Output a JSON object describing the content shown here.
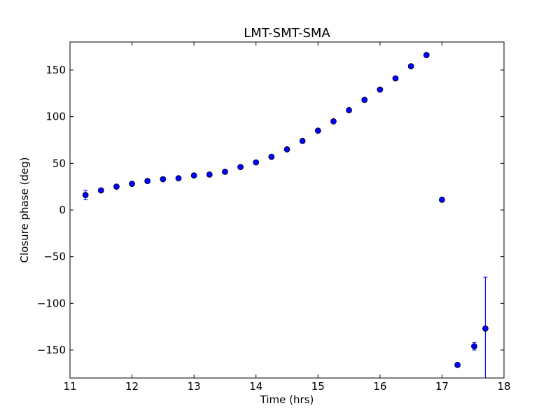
{
  "chart_data": {
    "type": "scatter",
    "title": "LMT-SMT-SMA",
    "xlabel": "Time (hrs)",
    "ylabel": "Closure phase (deg)",
    "xlim": [
      11,
      18
    ],
    "ylim": [
      -180,
      180
    ],
    "xticks": [
      11,
      12,
      13,
      14,
      15,
      16,
      17,
      18
    ],
    "yticks": [
      -150,
      -100,
      -50,
      0,
      50,
      100,
      150
    ],
    "xtick_labels": [
      "11",
      "12",
      "13",
      "14",
      "15",
      "16",
      "17",
      "18"
    ],
    "ytick_labels": [
      "−150",
      "−100",
      "−50",
      "0",
      "50",
      "100",
      "150"
    ],
    "grid": false,
    "marker_color": "#0000ff",
    "errorbar_color": "#0000ff",
    "points": [
      {
        "x": 11.25,
        "y": 16,
        "err": 5
      },
      {
        "x": 11.5,
        "y": 21,
        "err": 2
      },
      {
        "x": 11.75,
        "y": 25,
        "err": 2
      },
      {
        "x": 12.0,
        "y": 28,
        "err": 2
      },
      {
        "x": 12.25,
        "y": 31,
        "err": 2
      },
      {
        "x": 12.5,
        "y": 33,
        "err": 2
      },
      {
        "x": 12.75,
        "y": 34,
        "err": 2
      },
      {
        "x": 13.0,
        "y": 37,
        "err": 2
      },
      {
        "x": 13.25,
        "y": 38,
        "err": 2
      },
      {
        "x": 13.5,
        "y": 41,
        "err": 2
      },
      {
        "x": 13.75,
        "y": 46,
        "err": 2
      },
      {
        "x": 14.0,
        "y": 51,
        "err": 2
      },
      {
        "x": 14.25,
        "y": 57,
        "err": 2
      },
      {
        "x": 14.5,
        "y": 65,
        "err": 2
      },
      {
        "x": 14.75,
        "y": 74,
        "err": 2
      },
      {
        "x": 15.0,
        "y": 85,
        "err": 2
      },
      {
        "x": 15.25,
        "y": 95,
        "err": 2
      },
      {
        "x": 15.5,
        "y": 107,
        "err": 2
      },
      {
        "x": 15.75,
        "y": 118,
        "err": 2
      },
      {
        "x": 16.0,
        "y": 129,
        "err": 2
      },
      {
        "x": 16.25,
        "y": 141,
        "err": 2
      },
      {
        "x": 16.5,
        "y": 154,
        "err": 2
      },
      {
        "x": 16.75,
        "y": 166,
        "err": 2
      },
      {
        "x": 17.0,
        "y": 11,
        "err": 2
      },
      {
        "x": 17.25,
        "y": -166,
        "err": 2
      },
      {
        "x": 17.52,
        "y": -146,
        "err": 4
      },
      {
        "x": 17.7,
        "y": -127,
        "err": 55
      }
    ]
  }
}
